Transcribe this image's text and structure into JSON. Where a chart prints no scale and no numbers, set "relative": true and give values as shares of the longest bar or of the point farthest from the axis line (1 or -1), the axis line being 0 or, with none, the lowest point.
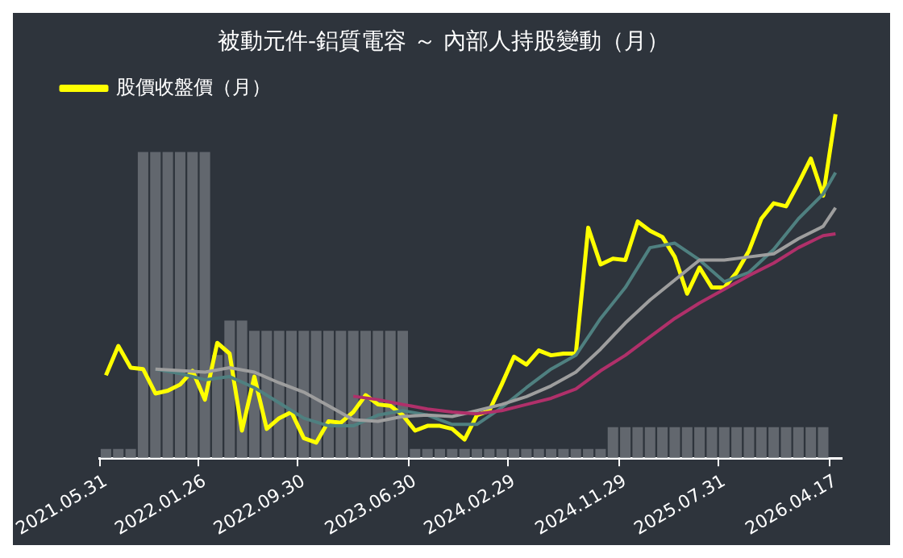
{
  "chart_data": {
    "type": "bar",
    "title": "被動元件-鋁質電容 ～ 內部人持股變動（月）",
    "relative": true,
    "legend": "top left",
    "grid": false,
    "marker": "none",
    "categories": [
      "2021.05.31",
      null,
      null,
      null,
      null,
      null,
      null,
      null,
      "2022.01.26",
      null,
      null,
      null,
      null,
      null,
      null,
      null,
      "2022.09.30",
      null,
      null,
      null,
      null,
      null,
      null,
      null,
      null,
      "2023.06.30",
      null,
      null,
      null,
      null,
      null,
      null,
      null,
      "2024.02.29",
      null,
      null,
      null,
      null,
      null,
      null,
      null,
      null,
      "2024.11.29",
      null,
      null,
      null,
      null,
      null,
      null,
      null,
      "2025.07.31",
      null,
      null,
      null,
      null,
      null,
      null,
      null,
      null,
      "2026.04.17"
    ],
    "series": [
      {
        "color": "#6f747b",
        "values": [
          0.027,
          0.027,
          0.027,
          0.89,
          0.89,
          0.89,
          0.89,
          0.89,
          0.89,
          0.3,
          0.4,
          0.4,
          0.37,
          0.37,
          0.37,
          0.37,
          0.37,
          0.37,
          0.37,
          0.37,
          0.37,
          0.37,
          0.37,
          0.37,
          0.37,
          0.027,
          0.027,
          0.027,
          0.027,
          0.027,
          0.027,
          0.027,
          0.027,
          0.027,
          0.027,
          0.027,
          0.027,
          0.027,
          0.027,
          0.027,
          0.027,
          0.09,
          0.09,
          0.09,
          0.09,
          0.09,
          0.09,
          0.09,
          0.09,
          0.09,
          0.09,
          0.09,
          0.09,
          0.09,
          0.09,
          0.09,
          0.09,
          0.09,
          0.09,
          null
        ]
      },
      {
        "type": "line",
        "color": "#b0306a",
        "values": [
          null,
          null,
          null,
          null,
          null,
          null,
          null,
          null,
          null,
          null,
          null,
          null,
          null,
          null,
          null,
          null,
          null,
          null,
          null,
          null,
          0.18,
          null,
          0.17,
          null,
          0.156,
          null,
          0.143,
          null,
          0.134,
          null,
          0.129,
          null,
          0.138,
          null,
          0.156,
          null,
          0.174,
          null,
          0.201,
          null,
          0.254,
          null,
          0.299,
          null,
          0.353,
          null,
          0.406,
          null,
          0.451,
          null,
          0.491,
          null,
          0.531,
          null,
          0.567,
          null,
          0.612,
          null,
          0.647,
          0.652
        ]
      },
      {
        "type": "line",
        "color": "#9e9e9e",
        "values": [
          null,
          null,
          null,
          null,
          0.259,
          null,
          null,
          null,
          0.25,
          null,
          0.263,
          null,
          0.25,
          null,
          0.219,
          null,
          0.192,
          null,
          0.152,
          null,
          0.112,
          null,
          0.107,
          null,
          0.121,
          null,
          0.125,
          null,
          0.121,
          null,
          0.138,
          null,
          0.156,
          null,
          0.179,
          null,
          0.21,
          null,
          0.25,
          null,
          0.317,
          null,
          0.393,
          null,
          0.46,
          null,
          0.518,
          null,
          0.576,
          null,
          0.576,
          null,
          0.585,
          null,
          0.594,
          null,
          0.638,
          null,
          0.674,
          0.728
        ]
      },
      {
        "type": "line",
        "color": "#4f8080",
        "values": [
          null,
          null,
          null,
          null,
          0.259,
          null,
          0.246,
          null,
          0.228,
          null,
          0.237,
          null,
          0.205,
          null,
          0.161,
          null,
          0.116,
          null,
          0.094,
          null,
          0.094,
          null,
          0.125,
          null,
          0.138,
          null,
          0.125,
          null,
          0.098,
          null,
          0.098,
          null,
          0.147,
          null,
          0.205,
          null,
          0.259,
          null,
          0.299,
          null,
          0.406,
          null,
          0.496,
          null,
          0.612,
          null,
          0.625,
          null,
          0.576,
          null,
          0.513,
          null,
          0.54,
          null,
          0.607,
          null,
          0.696,
          null,
          0.768,
          0.83
        ]
      },
      {
        "type": "line",
        "name": "股價收盤價（月）",
        "color": "#ffff00",
        "values": [
          0.241,
          0.326,
          0.263,
          0.259,
          0.188,
          0.196,
          0.214,
          0.254,
          0.17,
          0.335,
          0.304,
          0.08,
          0.237,
          0.085,
          0.116,
          0.134,
          0.058,
          0.045,
          0.107,
          0.103,
          0.134,
          0.183,
          0.156,
          0.152,
          0.125,
          0.08,
          0.094,
          0.094,
          0.085,
          0.054,
          0.125,
          0.138,
          0.214,
          0.295,
          0.272,
          0.313,
          0.299,
          0.304,
          0.304,
          0.67,
          0.563,
          0.58,
          0.576,
          0.688,
          0.661,
          0.643,
          0.585,
          0.478,
          0.554,
          0.496,
          0.496,
          0.54,
          0.603,
          0.696,
          0.741,
          0.732,
          0.799,
          0.871,
          0.763,
          1
        ]
      }
    ]
  }
}
